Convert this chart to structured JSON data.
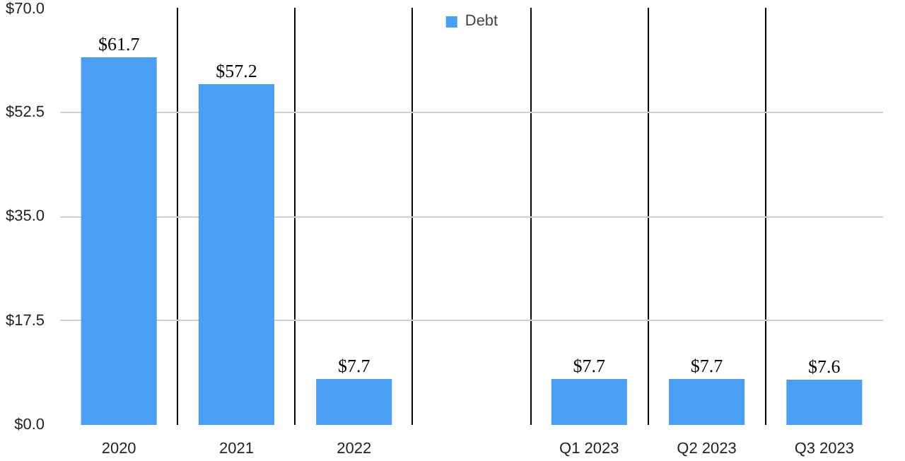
{
  "chart_data": {
    "type": "bar",
    "categories": [
      "2020",
      "2021",
      "2022",
      null,
      "Q1 2023",
      "Q2 2023",
      "Q3 2023"
    ],
    "series": [
      {
        "name": "Debt",
        "color": "#4a9ff5",
        "values": [
          61.7,
          57.2,
          7.7,
          null,
          7.7,
          7.7,
          7.6
        ],
        "value_labels": [
          "$61.7",
          "$57.2",
          "$7.7",
          null,
          "$7.7",
          "$7.7",
          "$7.6"
        ]
      }
    ],
    "ylim": [
      0,
      70
    ],
    "yticks": [
      {
        "value": 0,
        "label": "$0.0"
      },
      {
        "value": 17.5,
        "label": "$17.5"
      },
      {
        "value": 35,
        "label": "$35.0"
      },
      {
        "value": 52.5,
        "label": "$52.5"
      },
      {
        "value": 70,
        "label": "$70.0"
      }
    ],
    "grid": true,
    "legend": "top"
  }
}
